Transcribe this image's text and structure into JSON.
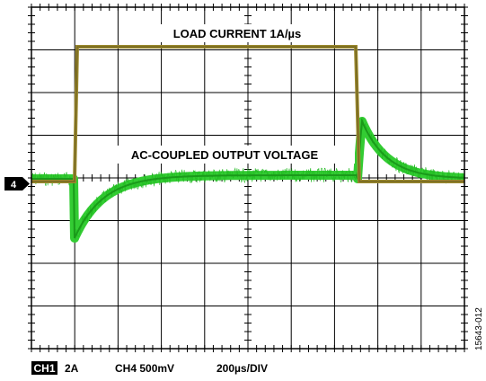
{
  "trace_labels": {
    "current": "LOAD CURRENT 1A/µs",
    "voltage": "AC-COUPLED OUTPUT VOLTAGE"
  },
  "channel_marker": "4",
  "footer": {
    "ch1": "CH1",
    "ch1_scale": "2A",
    "ch4": "CH4 500mV",
    "timebase": "200µs/DIV"
  },
  "figure_id": "15643-012"
}
